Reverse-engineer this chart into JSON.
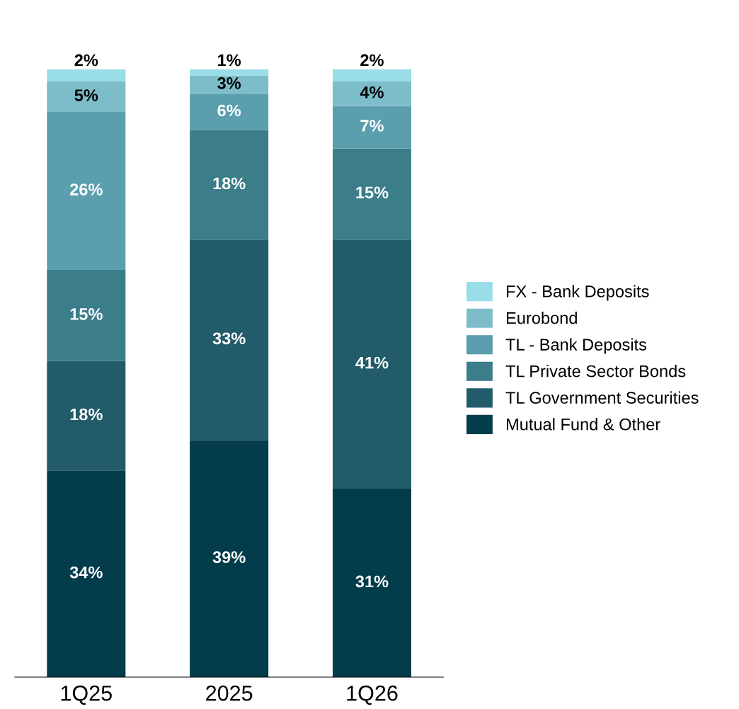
{
  "chart_data": {
    "type": "bar",
    "stacked": true,
    "legend": "right",
    "grid": false,
    "categories": [
      "1Q25",
      "2025",
      "1Q26"
    ],
    "series": [
      {
        "name": "Mutual Fund & Other",
        "color": "#033c4b",
        "values": [
          34,
          39,
          31
        ],
        "value_labels": [
          "34%",
          "39%",
          "31%"
        ]
      },
      {
        "name": "TL Government Securities",
        "color": "#225c6a",
        "values": [
          18,
          33,
          41
        ],
        "value_labels": [
          "18%",
          "33%",
          "41%"
        ]
      },
      {
        "name": "TL Private Sector Bonds",
        "color": "#3c7d8a",
        "values": [
          15,
          18,
          15
        ],
        "value_labels": [
          "15%",
          "18%",
          "15%"
        ]
      },
      {
        "name": "TL - Bank Deposits",
        "color": "#5b9fae",
        "values": [
          26,
          6,
          7
        ],
        "value_labels": [
          "26%",
          "6%",
          "7%"
        ]
      },
      {
        "name": "Eurobond",
        "color": "#7dbdca",
        "values": [
          5,
          3,
          4
        ],
        "value_labels": [
          "5%",
          "3%",
          "4%"
        ]
      },
      {
        "name": "FX - Bank Deposits",
        "color": "#99dde8",
        "values": [
          2,
          1,
          2
        ],
        "value_labels": [
          "2%",
          "1%",
          "2%"
        ]
      }
    ]
  }
}
